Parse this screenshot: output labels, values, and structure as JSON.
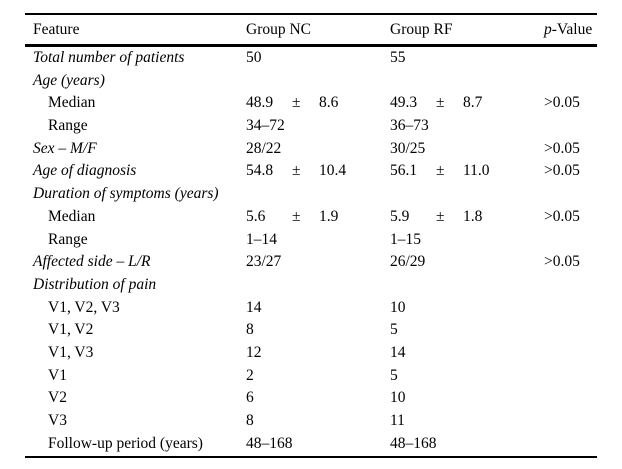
{
  "page": {
    "background": "#ffffff",
    "text_color": "#000000"
  },
  "table": {
    "header": {
      "feature": "Feature",
      "group_nc": "Group NC",
      "group_rf": "Group RF",
      "p_italic": "p",
      "p_rest": "-Value"
    },
    "rows": [
      {
        "feature": "Total number of patients",
        "indent": false,
        "italic": true,
        "nc": "50",
        "rf": "55",
        "p": ""
      },
      {
        "feature": "Age (years)",
        "indent": false,
        "italic": true,
        "nc": "",
        "rf": "",
        "p": ""
      },
      {
        "feature": "Median",
        "indent": true,
        "italic": false,
        "nc": {
          "v1": "48.9",
          "pm": "±",
          "v2": "8.6"
        },
        "rf": {
          "v1": "49.3",
          "pm": "±",
          "v2": "8.7"
        },
        "p": ">0.05"
      },
      {
        "feature": "Range",
        "indent": true,
        "italic": false,
        "nc": "34–72",
        "rf": "36–73",
        "p": ""
      },
      {
        "feature": "Sex – M/F",
        "indent": false,
        "italic": true,
        "nc": "28/22",
        "rf": "30/25",
        "p": ">0.05"
      },
      {
        "feature": "Age of diagnosis",
        "indent": false,
        "italic": true,
        "nc": {
          "v1": "54.8",
          "pm": "±",
          "v2": "10.4"
        },
        "rf": {
          "v1": "56.1",
          "pm": "±",
          "v2": "11.0"
        },
        "p": ">0.05"
      },
      {
        "feature": "Duration of symptoms (years)",
        "indent": false,
        "italic": true,
        "nc": "",
        "rf": "",
        "p": ""
      },
      {
        "feature": "Median",
        "indent": true,
        "italic": false,
        "nc": {
          "v1": "5.6",
          "pm": "±",
          "v2": "1.9"
        },
        "rf": {
          "v1": "5.9",
          "pm": "±",
          "v2": "1.8"
        },
        "p": ">0.05"
      },
      {
        "feature": "Range",
        "indent": true,
        "italic": false,
        "nc": "1–14",
        "rf": "1–15",
        "p": ""
      },
      {
        "feature": "Affected side – L/R",
        "indent": false,
        "italic": true,
        "nc": "23/27",
        "rf": "26/29",
        "p": ">0.05"
      },
      {
        "feature": "Distribution of pain",
        "indent": false,
        "italic": true,
        "nc": "",
        "rf": "",
        "p": ""
      },
      {
        "feature": "V1, V2, V3",
        "indent": true,
        "italic": false,
        "nc": "14",
        "rf": "10",
        "p": ""
      },
      {
        "feature": "V1, V2",
        "indent": true,
        "italic": false,
        "nc": "8",
        "rf": "5",
        "p": ""
      },
      {
        "feature": "V1, V3",
        "indent": true,
        "italic": false,
        "nc": "12",
        "rf": "14",
        "p": ""
      },
      {
        "feature": "V1",
        "indent": true,
        "italic": false,
        "nc": "2",
        "rf": "5",
        "p": ""
      },
      {
        "feature": "V2",
        "indent": true,
        "italic": false,
        "nc": "6",
        "rf": "10",
        "p": ""
      },
      {
        "feature": "V3",
        "indent": true,
        "italic": false,
        "nc": "8",
        "rf": "11",
        "p": ""
      },
      {
        "feature": "Follow-up period (years)",
        "indent": true,
        "italic": false,
        "nc": "48–168",
        "rf": "48–168",
        "p": ""
      }
    ]
  }
}
